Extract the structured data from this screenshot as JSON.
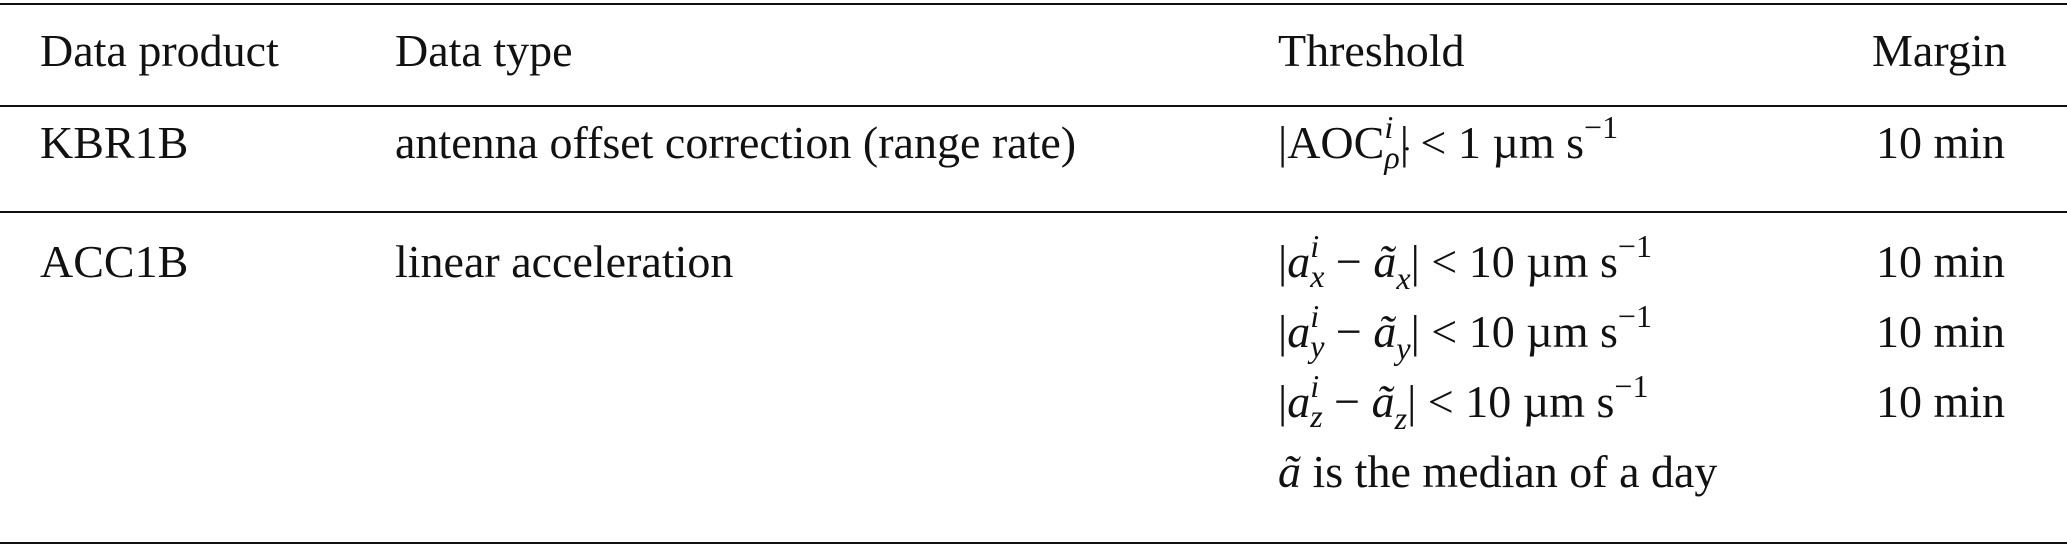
{
  "table": {
    "header": [
      "Data product",
      "Data type",
      "Threshold",
      "Margin"
    ],
    "rows": [
      {
        "product": "KBR1B",
        "type": "antenna offset correction (range rate)",
        "thresholds": [
          [
            {
              "text": "|AOC",
              "sup": "i",
              "sub": "ρ̇",
              "scripts_italic": true
            },
            {
              "text": "| < 1 µm s",
              "sup": "−1"
            }
          ]
        ],
        "margins": [
          "10 min"
        ]
      },
      {
        "product": "ACC1B",
        "type": "linear acceleration",
        "thresholds": [
          [
            {
              "text": "|"
            },
            {
              "text": "a",
              "italic": true,
              "sup": "i",
              "sub": "x",
              "scripts_italic": true
            },
            {
              "text": " − "
            },
            {
              "text": "ã",
              "italic": true,
              "sub": "x",
              "scripts_italic": true
            },
            {
              "text": "| < 10 µm s",
              "sup": "−1"
            }
          ],
          [
            {
              "text": "|"
            },
            {
              "text": "a",
              "italic": true,
              "sup": "i",
              "sub": "y",
              "scripts_italic": true
            },
            {
              "text": " − "
            },
            {
              "text": "ã",
              "italic": true,
              "sub": "y",
              "scripts_italic": true
            },
            {
              "text": "| < 10 µm s",
              "sup": "−1"
            }
          ],
          [
            {
              "text": "|"
            },
            {
              "text": "a",
              "italic": true,
              "sup": "i",
              "sub": "z",
              "scripts_italic": true
            },
            {
              "text": " − "
            },
            {
              "text": "ã",
              "italic": true,
              "sub": "z",
              "scripts_italic": true
            },
            {
              "text": "| < 10 µm s",
              "sup": "−1"
            }
          ],
          [
            {
              "text": "ã",
              "italic": true
            },
            {
              "text": " is the median of a day"
            }
          ]
        ],
        "margins": [
          "10 min",
          "10 min",
          "10 min"
        ]
      }
    ]
  }
}
